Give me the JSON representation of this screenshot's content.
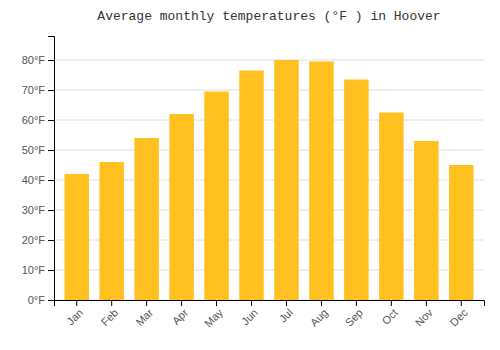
{
  "chart_data": {
    "type": "bar",
    "title": "Average monthly temperatures (°F ) in Hoover",
    "categories": [
      "Jan",
      "Feb",
      "Mar",
      "Apr",
      "May",
      "Jun",
      "Jul",
      "Aug",
      "Sep",
      "Oct",
      "Nov",
      "Dec"
    ],
    "values": [
      42,
      46,
      54,
      62,
      69.5,
      76.5,
      80,
      79.5,
      73.5,
      62.5,
      53,
      45
    ],
    "color": "#FFC020",
    "ylim": [
      0,
      88
    ],
    "yticks": [
      {
        "value": 0,
        "label": "0°F"
      },
      {
        "value": 10,
        "label": "10°F"
      },
      {
        "value": 20,
        "label": "20°F"
      },
      {
        "value": 30,
        "label": "30°F"
      },
      {
        "value": 40,
        "label": "40°F"
      },
      {
        "value": 50,
        "label": "50°F"
      },
      {
        "value": 60,
        "label": "60°F"
      },
      {
        "value": 70,
        "label": "70°F"
      },
      {
        "value": 80,
        "label": "80°F"
      }
    ],
    "grid": true
  }
}
